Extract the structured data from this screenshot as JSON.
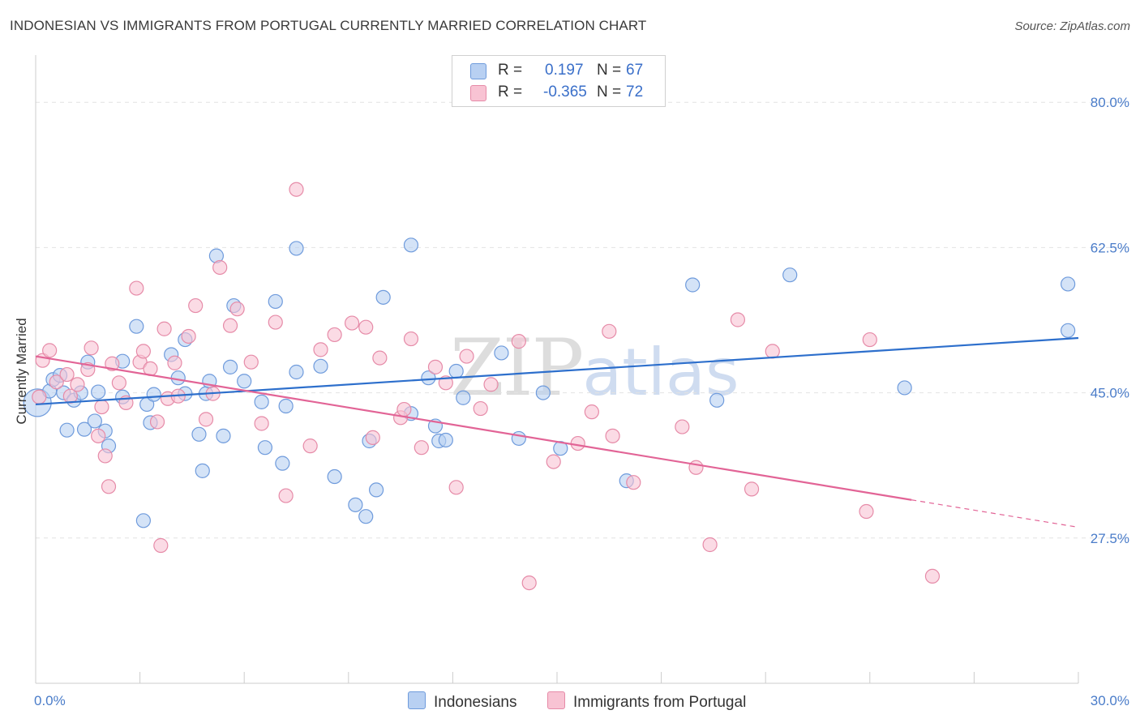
{
  "title": "INDONESIAN VS IMMIGRANTS FROM PORTUGAL CURRENTLY MARRIED CORRELATION CHART",
  "source": "Source: ZipAtlas.com",
  "watermark": {
    "zip": "ZIP",
    "atlas": "atlas"
  },
  "colors": {
    "blue_fill": "#b8d0f2",
    "blue_stroke": "#6f9bdc",
    "blue_line": "#2d6fcc",
    "pink_fill": "#f8c3d3",
    "pink_stroke": "#e68ba8",
    "pink_line": "#e26496",
    "grid": "#e2e2e2",
    "tick_text": "#4a7cc9"
  },
  "legend": {
    "rows": [
      {
        "r_label": "R =",
        "r_value": "0.197",
        "n_label": "N =",
        "n_value": "67"
      },
      {
        "r_label": "R =",
        "r_value": "-0.365",
        "n_label": "N =",
        "n_value": "72"
      }
    ]
  },
  "bottom_legend": [
    "Indonesians",
    "Immigrants from Portugal"
  ],
  "chart_data": {
    "type": "scatter",
    "ylabel": "Currently Married",
    "xlim": [
      0,
      30
    ],
    "ylim": [
      10,
      85
    ],
    "x_tick_labels": [
      {
        "value": 0,
        "label": "0.0%"
      },
      {
        "value": 30,
        "label": "30.0%"
      }
    ],
    "y_tick_labels": [
      {
        "value": 80,
        "label": "80.0%"
      },
      {
        "value": 62.5,
        "label": "62.5%"
      },
      {
        "value": 45,
        "label": "45.0%"
      },
      {
        "value": 27.5,
        "label": "27.5%"
      }
    ],
    "grid": true,
    "legend_placement": "top-center",
    "series": [
      {
        "name": "Indonesians",
        "color": "#6f9bdc",
        "trend": {
          "x0": 0,
          "y0": 43.6,
          "x1": 30,
          "y1": 51.6,
          "dashed_from": null
        },
        "points": [
          [
            0.05,
            43.8
          ],
          [
            0.4,
            45.2
          ],
          [
            0.5,
            46.6
          ],
          [
            0.7,
            47.1
          ],
          [
            0.8,
            45.0
          ],
          [
            0.9,
            40.5
          ],
          [
            1.1,
            44.1
          ],
          [
            1.3,
            45.0
          ],
          [
            1.4,
            40.6
          ],
          [
            1.5,
            48.7
          ],
          [
            1.7,
            41.6
          ],
          [
            1.8,
            45.1
          ],
          [
            2.0,
            40.4
          ],
          [
            2.1,
            38.6
          ],
          [
            2.5,
            48.8
          ],
          [
            2.5,
            44.5
          ],
          [
            2.9,
            53.0
          ],
          [
            3.1,
            29.6
          ],
          [
            3.2,
            43.6
          ],
          [
            3.3,
            41.4
          ],
          [
            3.4,
            44.8
          ],
          [
            3.9,
            49.6
          ],
          [
            4.1,
            46.8
          ],
          [
            4.3,
            44.9
          ],
          [
            4.3,
            51.4
          ],
          [
            4.7,
            40.0
          ],
          [
            4.8,
            35.6
          ],
          [
            4.9,
            44.9
          ],
          [
            5.0,
            46.4
          ],
          [
            5.2,
            61.5
          ],
          [
            5.4,
            39.8
          ],
          [
            5.6,
            48.1
          ],
          [
            5.7,
            55.5
          ],
          [
            6.0,
            46.4
          ],
          [
            6.5,
            43.9
          ],
          [
            6.6,
            38.4
          ],
          [
            6.9,
            56.0
          ],
          [
            7.1,
            36.5
          ],
          [
            7.2,
            43.4
          ],
          [
            7.5,
            47.5
          ],
          [
            7.5,
            62.4
          ],
          [
            8.2,
            48.2
          ],
          [
            8.6,
            34.9
          ],
          [
            9.2,
            31.5
          ],
          [
            9.5,
            30.1
          ],
          [
            9.6,
            39.2
          ],
          [
            9.8,
            33.3
          ],
          [
            10.0,
            56.5
          ],
          [
            10.8,
            42.5
          ],
          [
            10.8,
            62.8
          ],
          [
            11.3,
            46.8
          ],
          [
            11.5,
            41.0
          ],
          [
            11.6,
            39.2
          ],
          [
            11.8,
            39.3
          ],
          [
            12.1,
            47.6
          ],
          [
            12.3,
            44.4
          ],
          [
            13.4,
            49.8
          ],
          [
            14.6,
            45.0
          ],
          [
            15.1,
            38.3
          ],
          [
            17.0,
            34.4
          ],
          [
            18.9,
            58.0
          ],
          [
            21.7,
            59.2
          ],
          [
            25.0,
            45.6
          ],
          [
            29.7,
            58.1
          ],
          [
            29.7,
            52.5
          ],
          [
            19.6,
            44.1
          ],
          [
            13.9,
            39.5
          ]
        ]
      },
      {
        "name": "Immigrants from Portugal",
        "color": "#e68ba8",
        "trend": {
          "x0": 0,
          "y0": 49.4,
          "x1": 30,
          "y1": 28.8,
          "dashed_from": 25.2
        },
        "points": [
          [
            0.1,
            44.5
          ],
          [
            0.2,
            48.9
          ],
          [
            0.4,
            50.1
          ],
          [
            0.6,
            46.3
          ],
          [
            0.9,
            47.2
          ],
          [
            1.0,
            44.6
          ],
          [
            1.2,
            46.0
          ],
          [
            1.5,
            47.8
          ],
          [
            1.6,
            50.4
          ],
          [
            1.8,
            39.8
          ],
          [
            1.9,
            43.3
          ],
          [
            2.0,
            37.4
          ],
          [
            2.1,
            33.7
          ],
          [
            2.2,
            48.5
          ],
          [
            2.4,
            46.2
          ],
          [
            2.6,
            43.8
          ],
          [
            2.9,
            57.6
          ],
          [
            3.0,
            48.7
          ],
          [
            3.1,
            50.0
          ],
          [
            3.3,
            47.9
          ],
          [
            3.5,
            41.5
          ],
          [
            3.6,
            26.6
          ],
          [
            3.7,
            52.7
          ],
          [
            3.8,
            44.3
          ],
          [
            4.0,
            48.6
          ],
          [
            4.1,
            44.6
          ],
          [
            4.4,
            51.8
          ],
          [
            4.6,
            55.5
          ],
          [
            4.9,
            41.8
          ],
          [
            5.1,
            44.9
          ],
          [
            5.3,
            60.1
          ],
          [
            5.6,
            53.1
          ],
          [
            5.8,
            55.1
          ],
          [
            6.2,
            48.7
          ],
          [
            6.5,
            41.3
          ],
          [
            6.9,
            53.5
          ],
          [
            7.2,
            32.6
          ],
          [
            7.5,
            69.5
          ],
          [
            7.9,
            38.6
          ],
          [
            8.2,
            50.2
          ],
          [
            8.6,
            52.0
          ],
          [
            9.1,
            53.4
          ],
          [
            9.5,
            52.9
          ],
          [
            9.7,
            39.6
          ],
          [
            9.9,
            49.2
          ],
          [
            10.5,
            42.0
          ],
          [
            10.6,
            43.0
          ],
          [
            10.8,
            51.5
          ],
          [
            11.1,
            38.4
          ],
          [
            11.5,
            48.1
          ],
          [
            11.8,
            46.2
          ],
          [
            12.1,
            33.6
          ],
          [
            12.4,
            49.4
          ],
          [
            13.1,
            46.0
          ],
          [
            13.9,
            51.2
          ],
          [
            14.9,
            36.7
          ],
          [
            15.6,
            38.9
          ],
          [
            16.5,
            52.4
          ],
          [
            16.6,
            39.8
          ],
          [
            17.2,
            34.2
          ],
          [
            18.6,
            40.9
          ],
          [
            19.0,
            36.0
          ],
          [
            19.4,
            26.7
          ],
          [
            20.2,
            53.8
          ],
          [
            20.6,
            33.4
          ],
          [
            21.2,
            50.0
          ],
          [
            23.9,
            30.7
          ],
          [
            24.0,
            51.4
          ],
          [
            25.8,
            22.9
          ],
          [
            16.0,
            42.7
          ],
          [
            14.2,
            22.1
          ],
          [
            12.8,
            43.1
          ]
        ]
      }
    ]
  }
}
